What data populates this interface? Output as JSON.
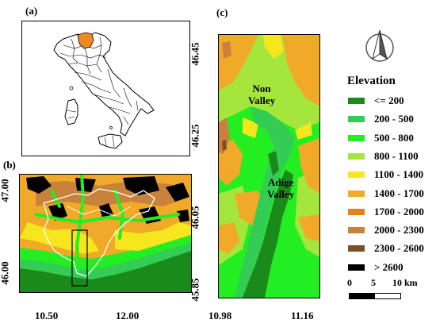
{
  "panels": {
    "a": {
      "label": "(a)"
    },
    "b": {
      "label": "(b)",
      "y_ticks": [
        "47.00",
        "46.00"
      ],
      "x_ticks": [
        "10.50",
        "12.00"
      ]
    },
    "c": {
      "label": "(c)",
      "y_ticks": [
        "46.45",
        "46.25",
        "46.05",
        "45.85"
      ],
      "x_ticks": [
        "10.98",
        "11.16"
      ],
      "place_labels": {
        "non_valley": "Non\nValley",
        "adige_valley": "Adige\nValley"
      }
    }
  },
  "legend": {
    "title": "Elevation",
    "items": [
      {
        "label": "<= 200",
        "color": "#1a8a1a"
      },
      {
        "label": "200 - 500",
        "color": "#33cc55"
      },
      {
        "label": "500 - 800",
        "color": "#22ee22"
      },
      {
        "label": "800 - 1100",
        "color": "#a5e63c"
      },
      {
        "label": "1100 - 1400",
        "color": "#f5e61e"
      },
      {
        "label": "1400 - 1700",
        "color": "#f0aa28"
      },
      {
        "label": "1700 - 2000",
        "color": "#e6821e"
      },
      {
        "label": "2000 - 2300",
        "color": "#c8823c"
      },
      {
        "label": "2300 - 2600",
        "color": "#7a5028"
      },
      {
        "label": "> 2600",
        "color": "#000000"
      }
    ]
  },
  "scale_bar": {
    "labels": [
      "0",
      "5",
      "10 km"
    ]
  },
  "north_arrow": {
    "icon": "north-arrow-icon"
  }
}
